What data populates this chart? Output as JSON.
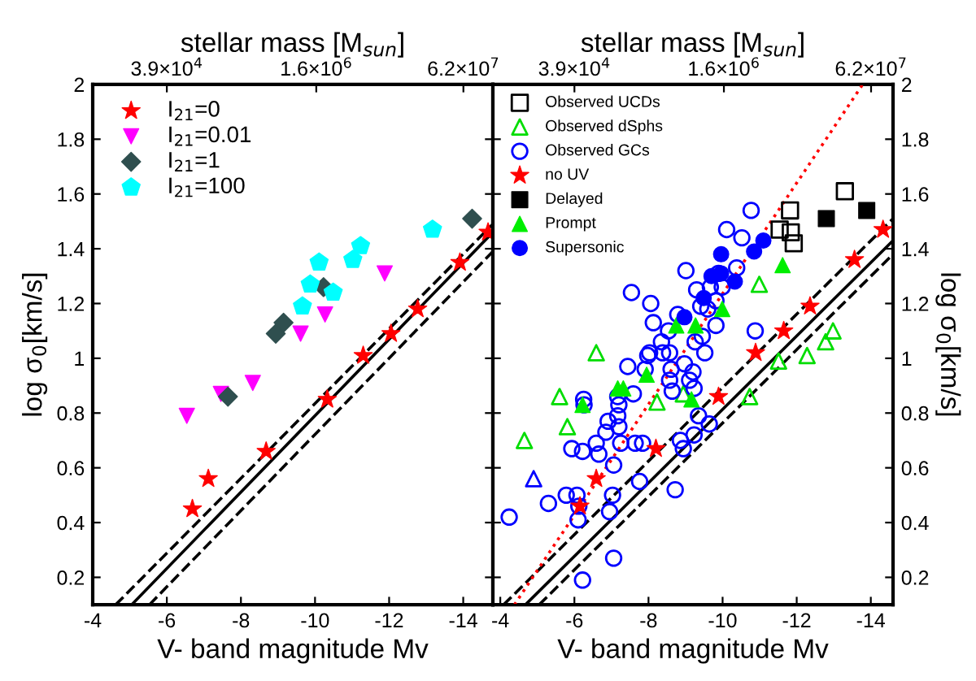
{
  "chart_data": [
    {
      "type": "scatter",
      "xlabel": "V- band magnitude Mv",
      "ylabel": "log σ$_{0}$[km/s]",
      "x2label": "stellar mass [M$_{sun}$]",
      "xlim": [
        -4,
        -14.8
      ],
      "xticks": [
        -4,
        -6,
        -8,
        -10,
        -12,
        -14
      ],
      "ylim": [
        0.1,
        2
      ],
      "yticks": [
        0.2,
        0.4,
        0.6,
        0.8,
        1,
        1.2,
        1.4,
        1.6,
        1.8,
        2
      ],
      "x2lim": [
        6180,
        129000000
      ],
      "x2ticks": [
        {
          "value": 39000,
          "label": "3.9×10$^{4}$"
        },
        {
          "value": 1600000,
          "label": "1.6×10$^{6}$"
        },
        {
          "value": 62000000,
          "label": "6.2×10$^{7}$"
        }
      ],
      "log": "x2",
      "legend": "top left",
      "grid": false,
      "series": [
        {
          "name": "I$_{21}$=0",
          "color": "#ff0000",
          "marker": "star",
          "x": [
            -6.69,
            -7.12,
            -8.68,
            -10.33,
            -11.3,
            -12.05,
            -12.77,
            -13.91,
            -14.67
          ],
          "values": [
            0.45,
            0.56,
            0.66,
            0.85,
            1.01,
            1.09,
            1.18,
            1.35,
            1.46
          ]
        },
        {
          "name": "I$_{21}$=0.01",
          "color": "#ff00ff",
          "marker": "triangle_down",
          "x": [
            -6.54,
            -7.46,
            -8.32,
            -9.61,
            -10.27,
            -11.88
          ],
          "values": [
            0.79,
            0.87,
            0.91,
            1.09,
            1.16,
            1.31
          ]
        },
        {
          "name": "I$_{21}$=1",
          "color": "#2f4f4f",
          "marker": "diamond",
          "x": [
            -7.65,
            -8.94,
            -9.15,
            -10.23,
            -14.24
          ],
          "values": [
            0.86,
            1.09,
            1.13,
            1.26,
            1.51
          ]
        },
        {
          "name": "I$_{21}$=100",
          "color": "#00ffff",
          "x": [
            -9.66,
            -9.87,
            -10.11,
            -10.49,
            -11.02,
            -11.23,
            -13.17
          ],
          "values": [
            1.19,
            1.27,
            1.35,
            1.24,
            1.36,
            1.41,
            1.47
          ]
        },
        {
          "type": "line",
          "color": "#000000",
          "line_style": "solid",
          "x": [
            -5.05,
            -14.8
          ],
          "values": [
            0.1,
            1.46
          ]
        },
        {
          "type": "line",
          "color": "#000000",
          "line_style": "dashed",
          "x": [
            -4.62,
            -14.8
          ],
          "values": [
            0.1,
            1.49
          ]
        },
        {
          "type": "line",
          "color": "#000000",
          "line_style": "dashed",
          "x": [
            -5.53,
            -14.8
          ],
          "values": [
            0.1,
            1.39
          ]
        }
      ]
    },
    {
      "type": "scatter",
      "xlabel": "V- band magnitude Mv",
      "y2label": "log σ$_{0}$[km/s]",
      "x2label": "stellar mass [M$_{sun}$]",
      "xlim": [
        -3.8,
        -14.6
      ],
      "xticks": [
        -4,
        -6,
        -8,
        -10,
        -12,
        -14
      ],
      "y2lim": [
        0.1,
        2
      ],
      "y2ticks": [
        0.2,
        0.4,
        0.6,
        0.8,
        1,
        1.2,
        1.4,
        1.6,
        1.8,
        2
      ],
      "x2lim": [
        5140,
        107000000
      ],
      "x2ticks": [
        {
          "value": 39000,
          "label": "3.9×10$^{4}$"
        },
        {
          "value": 1600000,
          "label": "1.6×10$^{6}$"
        },
        {
          "value": 62000000,
          "label": "6.2×10$^{7}$"
        }
      ],
      "log": "x2",
      "legend": "top left",
      "grid": false,
      "series": [
        {
          "name": "Observed UCDs",
          "axis": "y2",
          "color": "#000000",
          "marker": "square_open",
          "x": [
            -11.54,
            -11.82,
            -11.84,
            -11.92,
            -13.3
          ],
          "values": [
            1.47,
            1.54,
            1.46,
            1.42,
            1.61
          ]
        },
        {
          "name": "Observed dSphs",
          "axis": "y2",
          "color": "#00dd00",
          "marker": "triangle_open",
          "x": [
            -4.65,
            -5.6,
            -5.81,
            -6.59,
            -8.23,
            -8.94,
            -10.99,
            -10.73,
            -11.51,
            -12.28,
            -12.78,
            -12.98
          ],
          "values": [
            0.7,
            0.86,
            0.75,
            1.02,
            0.84,
            0.87,
            1.27,
            0.86,
            0.99,
            1.01,
            1.06,
            1.1
          ]
        },
        {
          "name": "Observed GCs",
          "axis": "y2",
          "color": "#0000ff",
          "marker": "circle_open",
          "x": [
            -4.24,
            -5.3,
            -5.78,
            -6.07,
            -6.12,
            -6.1,
            -5.93,
            -6.22,
            -6.25,
            -6.26,
            -6.59,
            -6.66,
            -6.85,
            -6.91,
            -7.06,
            -7.03,
            -6.95,
            -7.06,
            -6.22,
            -7.17,
            -7.2,
            -7.17,
            -7.2,
            -7.25,
            -7.44,
            -7.54,
            -7.59,
            -7.64,
            -7.76,
            -7.84,
            -7.91,
            -7.98,
            -8.06,
            -8.13,
            -8.03,
            -8.35,
            -8.38,
            -8.54,
            -8.57,
            -8.61,
            -8.57,
            -8.64,
            -8.72,
            -8.79,
            -8.86,
            -8.94,
            -8.97,
            -9.01,
            -9.11,
            -9.23,
            -9.2,
            -9.26,
            -9.3,
            -9.35,
            -9.23,
            -9.41,
            -9.45,
            -9.52,
            -9.64,
            -9.82,
            -9.89,
            -9.99,
            -10.11,
            -10.38,
            -10.52,
            -10.77,
            -10.88,
            -9.6,
            -9.82,
            -9.67
          ],
          "values": [
            0.42,
            0.47,
            0.5,
            0.5,
            0.46,
            0.41,
            0.67,
            0.66,
            0.85,
            0.83,
            0.69,
            0.65,
            0.73,
            0.77,
            0.61,
            0.5,
            0.44,
            0.27,
            0.19,
            0.79,
            0.83,
            0.86,
            0.75,
            0.69,
            0.97,
            1.24,
            0.87,
            0.69,
            0.55,
            0.69,
            0.96,
            1.01,
            1.2,
            1.13,
            1.02,
            1.06,
            1.02,
            1.1,
            1.02,
            0.96,
            0.92,
            0.88,
            0.52,
            1.16,
            0.7,
            0.67,
            0.98,
            1.32,
            0.92,
            0.89,
            0.95,
            1.06,
            1.25,
            0.79,
            0.72,
            1.19,
            1.08,
            1.02,
            0.76,
            1.12,
            1.31,
            1.26,
            1.47,
            1.33,
            1.44,
            1.54,
            1.1,
            1.18,
            1.21,
            1.26
          ]
        },
        {
          "name": "no UV",
          "axis": "y2",
          "color": "#ff0000",
          "marker": "star",
          "x": [
            -6.15,
            -6.59,
            -8.2,
            -9.89,
            -10.89,
            -11.65,
            -12.36,
            -13.56,
            -14.33
          ],
          "values": [
            0.46,
            0.56,
            0.67,
            0.86,
            1.02,
            1.1,
            1.19,
            1.36,
            1.47
          ]
        },
        {
          "name": "Delayed",
          "axis": "y2",
          "color": "#000000",
          "marker": "square",
          "x": [
            -12.8,
            -13.89
          ],
          "values": [
            1.51,
            1.54
          ]
        },
        {
          "name": "Prompt",
          "axis": "y2",
          "color": "#00ee00",
          "marker": "triangle",
          "x": [
            -6.22,
            -7.17,
            -7.32,
            -7.95,
            -8.75,
            -9.27,
            -9.99,
            -11.62,
            -9.16
          ],
          "values": [
            0.83,
            0.89,
            0.89,
            0.94,
            1.12,
            1.12,
            1.18,
            1.34,
            0.85
          ]
        },
        {
          "name": "Supersonic",
          "axis": "y2",
          "color": "#0000ff",
          "marker": "circle",
          "x": [
            -8.97,
            -9.49,
            -9.7,
            -9.96,
            -9.96,
            -10.33,
            -10.85,
            -11.1
          ],
          "values": [
            1.15,
            1.22,
            1.3,
            1.31,
            1.38,
            1.28,
            1.39,
            1.43
          ]
        },
        {
          "axis": "y2",
          "color": "#0000ff",
          "marker": "triangle_open",
          "x": [
            -4.9
          ],
          "values": [
            0.56
          ]
        },
        {
          "type": "line",
          "axis": "y2",
          "color": "#000000",
          "line_style": "solid",
          "x": [
            -4.68,
            -14.6
          ],
          "values": [
            0.1,
            1.43
          ]
        },
        {
          "type": "line",
          "axis": "y2",
          "color": "#000000",
          "line_style": "dashed",
          "x": [
            -4.09,
            -14.6
          ],
          "values": [
            0.1,
            1.51
          ]
        },
        {
          "type": "line",
          "axis": "y2",
          "color": "#000000",
          "line_style": "dashed",
          "x": [
            -5.05,
            -14.6
          ],
          "values": [
            0.1,
            1.38
          ]
        },
        {
          "type": "line",
          "axis": "y2",
          "color": "#ff0000",
          "line_style": "dotted",
          "x": [
            -4.38,
            -13.78
          ],
          "values": [
            0.1,
            2.0
          ]
        }
      ]
    }
  ]
}
